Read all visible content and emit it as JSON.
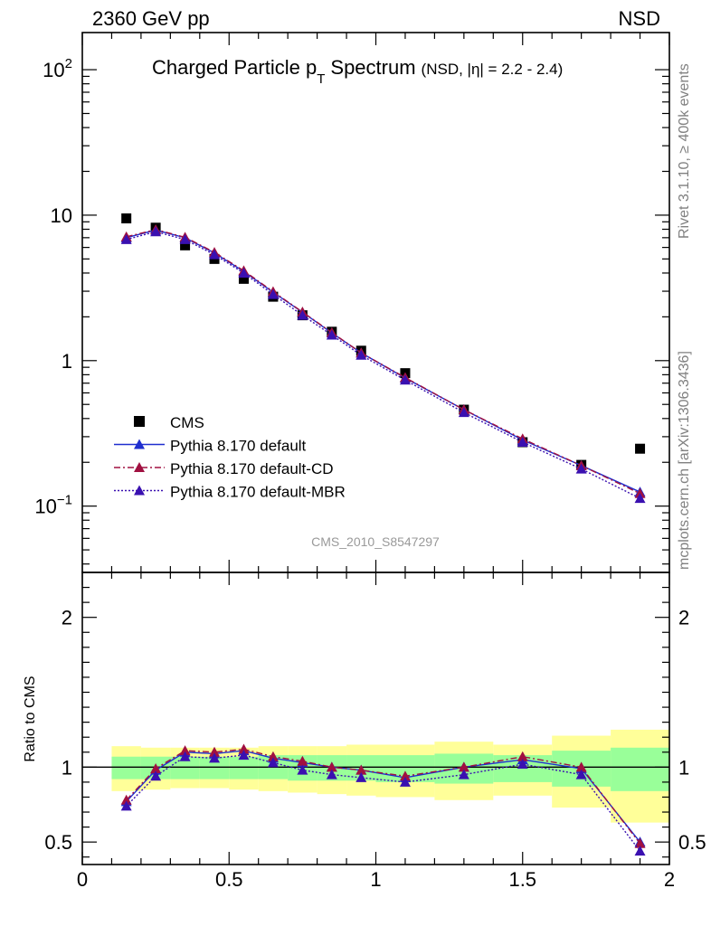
{
  "header": {
    "left_label": "2360 GeV pp",
    "right_label": "NSD"
  },
  "side_labels": {
    "rivet": "Rivet 3.1.10, ≥ 400k events",
    "mcplots": "mcplots.cern.ch [arXiv:1306.3436]"
  },
  "chart_data": [
    {
      "type": "scatter",
      "panel": "main",
      "title": "Charged Particle p",
      "title_sub": "T",
      "title_tail": "Spectrum",
      "title_small": "(NSD, |η| = 2.2 - 2.4)",
      "watermark": "CMS_2010_S8547297",
      "yscale": "log",
      "xlim": [
        0,
        2
      ],
      "ylim": [
        0.035,
        180
      ],
      "ytick_labels": [
        {
          "value": 100,
          "base": "10",
          "exp": "2"
        },
        {
          "value": 10,
          "base": "10",
          "exp": ""
        },
        {
          "value": 1,
          "base": "1",
          "exp": ""
        },
        {
          "value": 0.1,
          "base": "10",
          "exp": "−1"
        }
      ],
      "x": [
        0.15,
        0.25,
        0.35,
        0.45,
        0.55,
        0.65,
        0.75,
        0.85,
        0.95,
        1.1,
        1.3,
        1.5,
        1.7,
        1.9
      ],
      "series": [
        {
          "name": "CMS",
          "marker": "square",
          "color": "#000000",
          "line": "none",
          "values": [
            9.5,
            8.2,
            6.2,
            5.0,
            3.65,
            2.75,
            2.05,
            1.58,
            1.17,
            0.82,
            0.46,
            0.275,
            0.192,
            0.248
          ]
        },
        {
          "name": "Pythia 8.170 default",
          "marker": "triangle",
          "color": "#1f2ecf",
          "line": "solid",
          "values": [
            7.0,
            7.9,
            7.0,
            5.5,
            4.1,
            2.95,
            2.15,
            1.55,
            1.13,
            0.76,
            0.46,
            0.285,
            0.19,
            0.125
          ]
        },
        {
          "name": "Pythia 8.170 default-CD",
          "marker": "triangle",
          "color": "#a01040",
          "line": "dashdot",
          "values": [
            7.1,
            7.95,
            7.05,
            5.55,
            4.15,
            2.98,
            2.16,
            1.56,
            1.13,
            0.765,
            0.46,
            0.29,
            0.19,
            0.122
          ]
        },
        {
          "name": "Pythia 8.170 default-MBR",
          "marker": "triangle",
          "color": "#3a10b0",
          "line": "dotted",
          "values": [
            6.8,
            7.7,
            6.8,
            5.35,
            4.0,
            2.85,
            2.05,
            1.5,
            1.09,
            0.735,
            0.44,
            0.275,
            0.18,
            0.113
          ]
        }
      ]
    },
    {
      "type": "scatter",
      "panel": "ratio",
      "ylabel": "Ratio to CMS",
      "xlim": [
        0,
        2
      ],
      "ylim": [
        0.35,
        2.3
      ],
      "xtick_labels": [
        "0",
        "0.5",
        "1",
        "1.5",
        "2"
      ],
      "ytick_labels": [
        "0.5",
        "1",
        "2"
      ],
      "reference_line": 1,
      "bands": {
        "x_edges": [
          0.1,
          0.2,
          0.3,
          0.4,
          0.5,
          0.6,
          0.7,
          0.8,
          0.9,
          1.0,
          1.2,
          1.4,
          1.6,
          1.8,
          2.0
        ],
        "yellow_low": [
          0.84,
          0.85,
          0.86,
          0.86,
          0.85,
          0.84,
          0.83,
          0.82,
          0.81,
          0.8,
          0.78,
          0.81,
          0.73,
          0.63
        ],
        "yellow_high": [
          1.14,
          1.13,
          1.13,
          1.13,
          1.13,
          1.14,
          1.14,
          1.14,
          1.15,
          1.15,
          1.17,
          1.15,
          1.21,
          1.25
        ],
        "green_low": [
          0.92,
          0.92,
          0.92,
          0.92,
          0.92,
          0.92,
          0.91,
          0.91,
          0.91,
          0.9,
          0.89,
          0.9,
          0.87,
          0.84
        ],
        "green_high": [
          1.07,
          1.07,
          1.07,
          1.07,
          1.07,
          1.08,
          1.08,
          1.08,
          1.08,
          1.08,
          1.09,
          1.08,
          1.11,
          1.13
        ]
      },
      "x": [
        0.15,
        0.25,
        0.35,
        0.45,
        0.55,
        0.65,
        0.75,
        0.85,
        0.95,
        1.1,
        1.3,
        1.5,
        1.7,
        1.9
      ],
      "series": [
        {
          "name": "Pythia 8.170 default",
          "marker": "triangle",
          "color": "#1f2ecf",
          "line": "solid",
          "values": [
            0.77,
            0.98,
            1.1,
            1.09,
            1.11,
            1.06,
            1.03,
            1.0,
            0.98,
            0.93,
            1.0,
            1.05,
            0.99,
            0.5
          ]
        },
        {
          "name": "Pythia 8.170 default-CD",
          "marker": "triangle",
          "color": "#a01040",
          "line": "dashdot",
          "values": [
            0.78,
            0.99,
            1.11,
            1.1,
            1.12,
            1.07,
            1.04,
            1.0,
            0.98,
            0.94,
            1.0,
            1.07,
            1.0,
            0.49
          ]
        },
        {
          "name": "Pythia 8.170 default-MBR",
          "marker": "triangle",
          "color": "#3a10b0",
          "line": "dotted",
          "values": [
            0.74,
            0.94,
            1.07,
            1.06,
            1.08,
            1.03,
            0.98,
            0.95,
            0.93,
            0.9,
            0.95,
            1.02,
            0.95,
            0.44
          ]
        }
      ]
    }
  ]
}
